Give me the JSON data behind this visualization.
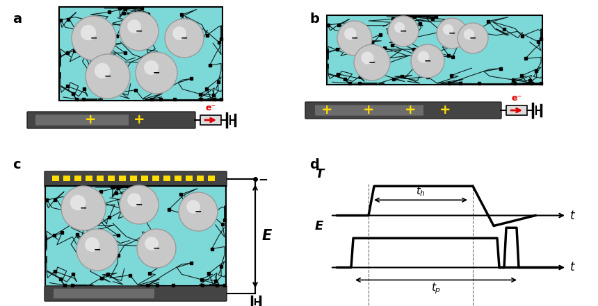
{
  "bg_color": "#ffffff",
  "cyan_color": "#7dd8d8",
  "sphere_color": "#c8c8c8",
  "sphere_edge": "#999999",
  "electrode_dark": "#555555",
  "electrode_light": "#aaaaaa",
  "yellow_color": "#ffdd00",
  "red_color": "#dd0000",
  "label_fontsize": 14,
  "panel_labels": [
    "a",
    "b",
    "c",
    "d"
  ],
  "signal_color": "#000000"
}
